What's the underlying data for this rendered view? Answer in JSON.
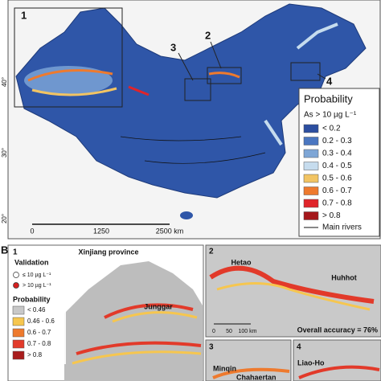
{
  "panel_a": {
    "region_labels": [
      "1",
      "2",
      "3",
      "4"
    ],
    "lat_labels": [
      "40°",
      "30°",
      "20°"
    ],
    "scale_labels": [
      "0",
      "1250",
      "2500 km"
    ],
    "legend": {
      "title": "Probability",
      "subtitle": "As > 10 µg L⁻¹",
      "items": [
        {
          "label": "< 0.2",
          "color": "#2c4ea0"
        },
        {
          "label": "0.2 - 0.3",
          "color": "#4a76c0"
        },
        {
          "label": "0.3 - 0.4",
          "color": "#7ea6d6"
        },
        {
          "label": "0.4 - 0.5",
          "color": "#c6dcee"
        },
        {
          "label": "0.5 - 0.6",
          "color": "#f2c463"
        },
        {
          "label": "0.6 - 0.7",
          "color": "#ee7a2e"
        },
        {
          "label": "0.7 - 0.8",
          "color": "#e0242a"
        },
        {
          "label": "> 0.8",
          "color": "#a5171b"
        }
      ],
      "rivers": "Main rivers"
    }
  },
  "panel_b": {
    "label": "B",
    "inset_1": {
      "number": "1",
      "title": "Xinjiang province",
      "validation_title": "Validation",
      "validation_items": [
        {
          "label": "≤ 10 µg L⁻¹",
          "color": "#ffffff"
        },
        {
          "label": "> 10 µg L⁻¹",
          "color": "#d42020"
        }
      ],
      "probability_title": "Probability",
      "probability_items": [
        {
          "label": "< 0.46",
          "color": "#c8c8c8"
        },
        {
          "label": "0.46 - 0.6",
          "color": "#f6c64f"
        },
        {
          "label": "0.6 - 0.7",
          "color": "#ee7a2e"
        },
        {
          "label": "0.7 - 0.8",
          "color": "#e23a2a"
        },
        {
          "label": "> 0.8",
          "color": "#a91c1c"
        }
      ],
      "place": "Junggar"
    },
    "inset_2": {
      "number": "2",
      "places": [
        "Hetao",
        "Huhhot"
      ],
      "scale_labels": [
        "0",
        "50",
        "100 km"
      ],
      "accuracy": "Overall accuracy = 76%"
    },
    "inset_3": {
      "number": "3",
      "places": [
        "Minqin",
        "Chahaertan"
      ]
    },
    "inset_4": {
      "number": "4",
      "place": "Liao-Ho"
    }
  }
}
